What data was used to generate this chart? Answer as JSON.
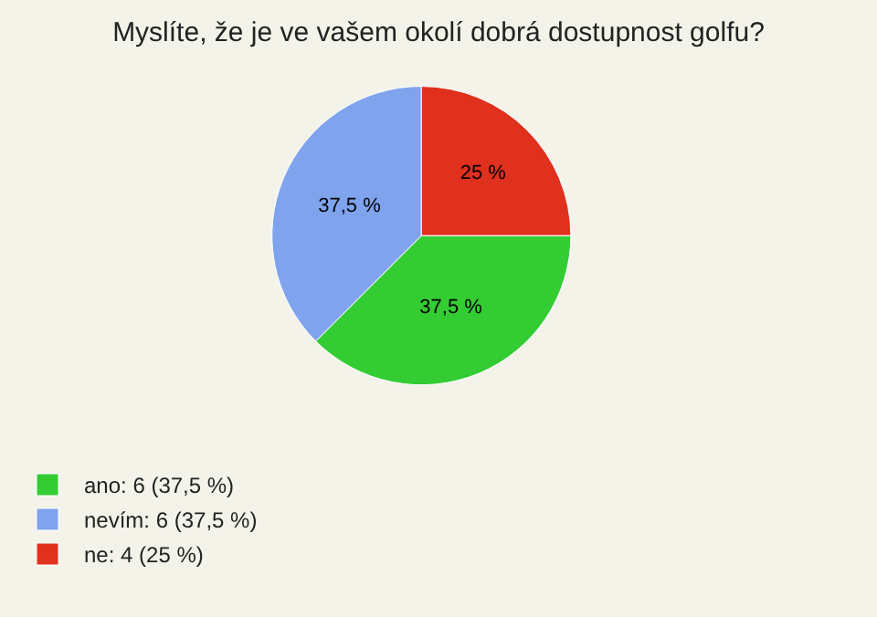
{
  "chart_data": {
    "type": "pie",
    "title": "Myslíte, že je ve vašem okolí dobrá dostupnost golfu?",
    "categories": [
      "ano: 6 (37,5 %)",
      "nevím: 6 (37,5 %)",
      "ne: 4 (25 %)"
    ],
    "values": [
      37.5,
      37.5,
      25
    ],
    "value_labels": [
      "37,5 %",
      "37,5 %",
      "25 %"
    ],
    "colors": [
      "#33cc33",
      "#7fa3ec",
      "#e0301e"
    ],
    "legend": "bottom left"
  }
}
